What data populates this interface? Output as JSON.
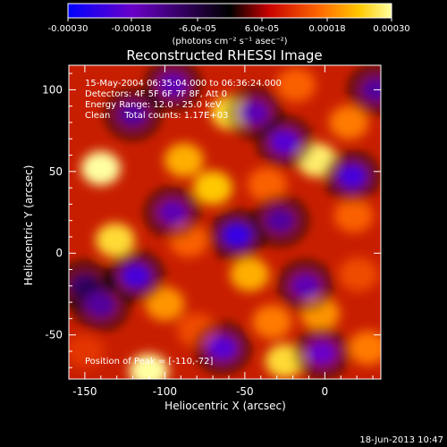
{
  "chart_data": {
    "type": "heatmap",
    "title": "Reconstructed RHESSI Image",
    "xlabel": "Heliocentric X (arcsec)",
    "ylabel": "Heliocentric Y (arcsec)",
    "xlim": [
      -160,
      35
    ],
    "ylim": [
      -77,
      115
    ],
    "xticks": [
      -150,
      -100,
      -50,
      0
    ],
    "yticks": [
      -50,
      0,
      50,
      100
    ],
    "grid": false,
    "colorbar": {
      "range": [
        -0.0003,
        0.0003
      ],
      "tick_labels": [
        "-0.00030",
        "-0.00018",
        "-6.0e-05",
        "6.0e-05",
        "0.00018",
        "0.00030"
      ],
      "units": "(photons cm⁻² s⁻¹ asec⁻²)",
      "colormap": [
        "#0000ff",
        "#6a00c8",
        "#000000",
        "#c80000",
        "#ff6a00",
        "#ffc800",
        "#ffffa0"
      ]
    },
    "annotations": [
      "15-May-2004 06:35:04.000 to 06:36:24.000",
      "Detectors: 4F 5F 6F 7F 8F, Att 0",
      "Energy Range: 12.0 - 25.0 keV",
      "Clean     Total counts: 1.17E+03"
    ],
    "peak_label": "Position of Peak = [-110,-72]",
    "peak": [
      -110,
      -72
    ],
    "intensity_blobs": [
      {
        "x": -140,
        "y": 52,
        "value": 0.0003
      },
      {
        "x": -131,
        "y": 8,
        "value": 0.00026
      },
      {
        "x": -110,
        "y": -72,
        "value": 0.0003
      },
      {
        "x": -100,
        "y": -31,
        "value": 0.0002
      },
      {
        "x": -88,
        "y": 57,
        "value": 0.00022
      },
      {
        "x": -85,
        "y": 8,
        "value": 0.00016
      },
      {
        "x": -80,
        "y": -47,
        "value": 0.00014
      },
      {
        "x": -70,
        "y": 40,
        "value": 0.00024
      },
      {
        "x": -59,
        "y": 86,
        "value": 0.00026
      },
      {
        "x": -47,
        "y": -13,
        "value": 0.00022
      },
      {
        "x": -36,
        "y": 42,
        "value": 0.00016
      },
      {
        "x": -33,
        "y": -42,
        "value": 0.00018
      },
      {
        "x": -25,
        "y": -66,
        "value": 0.00026
      },
      {
        "x": -5,
        "y": 57,
        "value": 0.00028
      },
      {
        "x": -3,
        "y": -37,
        "value": 0.0002
      },
      {
        "x": -18,
        "y": 103,
        "value": 0.00016
      },
      {
        "x": 15,
        "y": 80,
        "value": 0.00018
      },
      {
        "x": 18,
        "y": 23,
        "value": 0.00016
      },
      {
        "x": 21,
        "y": -13,
        "value": 0.00014
      },
      {
        "x": 27,
        "y": -58,
        "value": 0.00018
      },
      {
        "x": -150,
        "y": -60,
        "value": 0.00012
      },
      {
        "x": -150,
        "y": -20,
        "value": -0.0001
      },
      {
        "x": -118,
        "y": -14,
        "value": -0.00022
      },
      {
        "x": -120,
        "y": 85,
        "value": -0.00014
      },
      {
        "x": -95,
        "y": 103,
        "value": -0.00016
      },
      {
        "x": -95,
        "y": 25,
        "value": -0.00016
      },
      {
        "x": -64,
        "y": -58,
        "value": -0.0002
      },
      {
        "x": -55,
        "y": 11,
        "value": -0.00024
      },
      {
        "x": -44,
        "y": 86,
        "value": -0.00016
      },
      {
        "x": -25,
        "y": 68,
        "value": -0.0002
      },
      {
        "x": -28,
        "y": 20,
        "value": -0.00014
      },
      {
        "x": -12,
        "y": -20,
        "value": -0.00016
      },
      {
        "x": -2,
        "y": -61,
        "value": -0.00018
      },
      {
        "x": 17,
        "y": 47,
        "value": -0.00022
      },
      {
        "x": 32,
        "y": 100,
        "value": -0.00014
      },
      {
        "x": -140,
        "y": -32,
        "value": -0.00014
      }
    ]
  },
  "timestamp": "18-Jun-2013 10:47"
}
